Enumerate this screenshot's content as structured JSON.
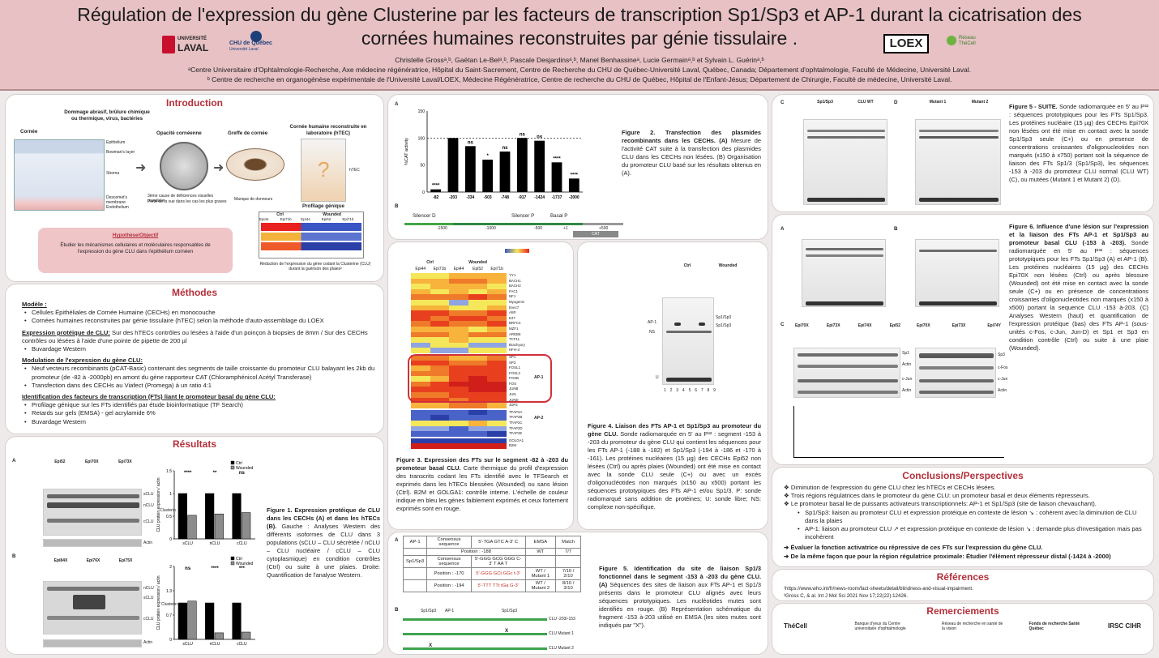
{
  "header": {
    "title_line1": "Régulation de l'expression du gène Clusterine par les facteurs de transcription Sp1/Sp3 et AP-1 durant la cicatrisation des",
    "title_line2": "cornées humaines reconstruites par génie tissulaire",
    "authors": "Christelle Grossᵃ,ᵇ, Gaëtan Le-Belᵃ,ᵇ, Pascale Desjardinsᵃ,ᵇ, Manel Benhassineᵃ, Lucie Germainᵃ,ᵇ et Sylvain L. Guérinᵃ,ᵇ",
    "affil_a": "ᵃCentre Universitaire d'Ophtalmologie-Recherche, Axe médecine régénératrice, Hôpital du Saint-Sacrement, Centre de Recherche du CHU de Québec-Université Laval, Québec, Canada; Département d'ophtalmologie, Faculté de Médecine, Université Laval.",
    "affil_b": "ᵇ Centre de recherche en organogénèse expérimentale de l'Université Laval/LOEX, Médecine Régénératrice, Centre de recherche du CHU de Québec, Hôpital de l'Enfant-Jésus; Département de Chirurgie, Faculté de médecine, Université Laval.",
    "logo_ul_1": "UNIVERSITÉ",
    "logo_ul_2": "LAVAL",
    "logo_chu": "CHU de Québec",
    "logo_chu_sub": "Université Laval",
    "logo_loex": "LOEX",
    "logo_reseau": "Réseau ThéCell"
  },
  "intro": {
    "title": "Introduction",
    "damage": "Dommage abrasif, brûlure chimique ou thermique, virus, bactéries",
    "cornee": "Cornée",
    "opacite": "Opacité cornéenne",
    "greffe": "Greffe de cornée",
    "hce": "Cornée humaine reconstruite en laboratoire (hTEC)",
    "htec": "hTEC",
    "layers": [
      "Epithelium",
      "Bowman's layer",
      "Stroma",
      "Descemet's membrane",
      "Endothelium"
    ],
    "cause": "3ème cause de déficiences visuelles mondiale¹",
    "cause2": "Perte de la vue dans les cas les plus graves",
    "manque": "Manque de donneurs",
    "profil": "Profilage génique",
    "profil_cols": [
      "Ctrl",
      "Wounded"
    ],
    "profil_sub": [
      "Epi44",
      "Epi71b",
      "Epi44",
      "Epi52",
      "Epi71b"
    ],
    "reduction": "Réduction de l'expression du gène codant la Clusterine (CLU) durant la guérison des plaies²",
    "hyp_title": "Hypothèse/Objectif",
    "hyp_text": "Étudier les mécanismes cellulaires et moléculaires responsables de l'expression du gène CLU dans l'épithélium cornéen"
  },
  "methods": {
    "title": "Méthodes",
    "modele": "Modèle :",
    "modele_items": [
      "Cellules Épithéliales de Cornée Humaine (CECHs) en monocouche",
      "Cornées humaines reconstruites par génie tissulaire (hTEC) selon la méthode d'auto-assemblage du LOEX"
    ],
    "prot_title": "Expression protéique de CLU:",
    "prot_text": "Sur des hTECs contrôles ou lésées à l'aide d'un poinçon à biopsies de 8mm / Sur des CECHs contrôles ou lésées à l'aide d'une pointe de pipette de 200 µl",
    "prot_items": [
      "Buvardage Western"
    ],
    "mod_title": "Modulation de l'expression du gène CLU:",
    "mod_items": [
      "Neuf vecteurs recombinants (pCAT-Basic) contenant des segments de taille croissante du promoteur CLU balayant les 2kb du promoteur (de -82 à -2000pb) en amont du gène rapporteur CAT (Chloramphénicol Acétyl Transferase)",
      "Transfection dans des CECHs au Viafect (Promega) à un ratio 4:1"
    ],
    "ft_title": "Identification des facteurs de transcription (FTs) liant le promoteur basal du gène CLU:",
    "ft_items": [
      "Profilage génique sur les FTs identifiés par étude bioinformatique   (TF Search)",
      "Retards sur gels (EMSA) - gel acrylamide 6%",
      "Buvardage Western"
    ]
  },
  "results": {
    "title": "Résultats",
    "fig1_caption_bold": "Figure 1. Expression protéique de CLU dans les CECHs (A) et dans les hTECs (B).",
    "fig1_caption": "Gauche : Analyses Western des différents isoformes de CLU dans 3 populations (sCLU – CLU sécrétée / nCLU – CLU nucléaire / cCLU – CLU cytoplasmique) en condition contrôles (Ctrl) ou suite à une plaies. Droite: Quantification de l'analyse Western.",
    "fig1_A_pops": [
      "Epi52",
      "Epi70X",
      "Epi73X"
    ],
    "fig1_B_pops": [
      "Epi84X",
      "Epi76X",
      "Epi75X"
    ],
    "lanes": [
      "Ctrl",
      "Wounded"
    ],
    "bands": [
      "sCLU",
      "nCLU",
      "cCLU"
    ],
    "clusterin": "Clusterin",
    "actin": "Actin",
    "kda_A": [
      "80",
      "60",
      "50",
      "40"
    ],
    "legend": [
      "Ctrl",
      "Wounded"
    ],
    "ylabel": "CLU protein expression / actin",
    "sig_A": [
      "****",
      "**",
      "ns"
    ],
    "sig_B": [
      "ns",
      "****",
      "***"
    ],
    "panel_A": "A",
    "panel_B": "B"
  },
  "fig2": {
    "caption_bold": "Figure 2. Transfection des plasmides recombinants dans les CECHs. (A)",
    "caption": "Mesure de l'activité CAT suite à la transfection des plasmides CLU dans les CECHs non lésées. (B) Organisation du promoteur CLU basé sur les résultats obtenus en (A).",
    "ylabel": "%CAT activity",
    "sig": [
      "****",
      "",
      "ns",
      "*",
      "ns",
      "ns",
      "ns",
      "****",
      "****"
    ],
    "regions": [
      "Silencer D",
      "Silencer P",
      "Basal P"
    ],
    "positions": [
      "-1500",
      "-1000",
      "-500",
      "+1",
      "+500"
    ],
    "cat": "CAT"
  },
  "fig3": {
    "caption_bold": "Figure 3. Expression des FTs sur le segment -82 à -203 du promoteur basal CLU.",
    "caption": "Carte thermique du profil d'expression des transcrits codant les FTs identifié avec le TFSearch et exprimés dans les hTECs blessées (Wounded) ou sans lésion (Ctrl). B2M et GOLGA1: contrôle interne. L'échelle de couleur indique en bleu les gènes faiblement exprimés et ceux fortement exprimés sont en rouge.",
    "groups": [
      "Ctrl",
      "Wounded"
    ],
    "cols": [
      "Epi44",
      "Epi71b",
      "Epi44",
      "Epi52",
      "Epi71b"
    ],
    "genes": [
      "YY1",
      "BACH1",
      "BACH2",
      "FAC1",
      "NF1",
      "Myogenin",
      "Evec7",
      "AhR",
      "E47",
      "BRFC4",
      "MZF1",
      "AREB6",
      "TCF11",
      "Brachyury",
      "HFH-3",
      "SP1",
      "SP3",
      "FOSL1",
      "FOSL2",
      "FOSB",
      "FOS",
      "JUNB",
      "JUN",
      "JUND",
      "JDP2",
      "TFAP2A",
      "TFAP2B",
      "TFAP2C",
      "TFAP2D",
      "TFAP2E",
      "GOLGA1",
      "B2M"
    ],
    "ap1": "AP-1",
    "ap2": "AP-2"
  },
  "fig4": {
    "caption_bold": "Figure 4. Liaison des FTs AP-1 et Sp1/Sp3 au promoteur du gène CLU.",
    "caption": "Sonde radiomarquée en 5' au P³² : segment -153 à -203 du promoteur du gène CLU qui contient les séquences pour les FTs AP-1 (-188 à -182) et Sp1/Sp3 (-194 à -186 et -170 à -161). Les protéines nucléaires (15 µg) des CECHs Epi52 non lésées (Ctrl) ou après plaies (Wounded) ont été mise en contact avec la sonde CLU seule (C+) ou avec un excès d'oligonucléotides non marqués (x150 au x500) portant les séquences prototypiques des FTs AP-1 et/ou Sp1/3. P: sonde radiomarqué sans addition de protéines; U: sonde libre; NS: complexe non-spécifique.",
    "labels": [
      "AP-1",
      "NS",
      "Sp1/Sp3",
      "Sp1/Sp3",
      "U"
    ],
    "groups": [
      "Ctrl",
      "Wounded"
    ],
    "lanes": [
      "1",
      "2",
      "3",
      "4",
      "5",
      "6",
      "7",
      "8",
      "9"
    ]
  },
  "fig5": {
    "caption_bold": "Figure 5. Identification du site de liaison Sp1/3 fonctionnel dans le segment -153 à -203 du gène CLU. (A)",
    "caption": "Séquences des sites de liaison aux FTs AP-1 et Sp1/3 présents dans le promoteur CLU alignés avec leurs séquences prototypiques. Les nucléotides mutes sont identifiés en rouge. (B) Représentation schématique du fragment -153 à-203 utilisé en EMSA (les sites mutes sont indiqués par \"X\").",
    "table_head": [
      "Consensus sequence",
      "EMSA",
      "Match"
    ],
    "rows": [
      {
        "tf": "AP-1",
        "seq": "5'-TGA GTC A-3'  C",
        "emsa": "",
        "match": ""
      },
      {
        "tf": "",
        "seq": "Position : -188",
        "emsa": "WT",
        "match": "7/7"
      },
      {
        "tf": "Sp1/Sp3",
        "seq": "5'-GGG GCG GGG C-3'  T    AA T",
        "emsa": "",
        "match": ""
      },
      {
        "tf": "",
        "seq": "Position : -170",
        "emsa": "WT / Mutant 1",
        "match": "7/10 / 2/10"
      },
      {
        "tf": "",
        "seq": "Position : -194",
        "emsa": "WT / Mutant 2",
        "match": "8/10 / 3/10"
      }
    ],
    "construct_labels": [
      "CLU -203/-153",
      "CLU Mutant 1",
      "CLU Mutant 2"
    ],
    "sites": [
      "Sp1/Sp3",
      "AP-1",
      "Sp1/Sp3"
    ]
  },
  "fig5b": {
    "caption_bold": "Figure 5 - SUITE.",
    "caption": "Sonde radiomarquée en 5' au P³² : séquences prototypiques pour les FTs Sp1/Sp3. Les protéines nucléaire (15 µg) des CECHs Epi70X non lésées ont été mise en contact avec la sonde Sp1/Sp3 seule (C+) ou en presence de concentrations croissantes d'oligonucleotides non marqués (x150 à x750) portant soit la séquence de liaison des FTs Sp1/3 (Sp1/Sp3), les séquences -153 à -203 du promoteur CLU normal (CLU WT) (C), ou mutées (Mutant 1 et Mutant 2) (D).",
    "gel_C_groups": [
      "Sp1/Sp3",
      "CLU WT"
    ],
    "gel_D_groups": [
      "Mutant 1",
      "Mutant 2"
    ]
  },
  "fig6": {
    "caption_bold": "Figure 6. Influence d'une lésion sur l'expression et la liaison des FTs AP-1 et Sp1/Sp3 au promoteur basal CLU (-153 à -203).",
    "caption": "Sonde radiomarquée en 5' au P³² : séquences prototypiques pour les FTs Sp1/Sp3 (A) et AP-1 (B). Les protéines nucléaires (15 µg) des CECHs Epi70X non lésées (Ctrl) ou après blessure (Wounded) ont été mise en contact avec la sonde seule (C+) ou en présence de concentrations croissantes d'oligonucleotides non marqués (x150 à x500) portant la sequence CLU -153 à-203. (C) Analyses Western (haut) et quantification de l'expression protéique (bas) des FTs AP-1 (sous-unités c-Fos, c-Jun, Jun-D) et Sp1 et Sp3 en condition contrôle (Ctrl) ou suite à une plaie (Wounded).",
    "western_pops_left": [
      "Epi70X",
      "Epi73X",
      "Epi74X",
      "Epi52"
    ],
    "western_pops_right": [
      "Epi70X",
      "Epi73X",
      "Epi74Y"
    ],
    "blots_left": [
      "Sp1",
      "Actin",
      "c-Jun",
      "Actin"
    ],
    "blots_right": [
      "Sp3",
      "c-Fos",
      "c-Jun",
      "Actin"
    ]
  },
  "conclusions": {
    "title": "Conclusions/Perspectives",
    "items": [
      "Diminution de l'expression du gène CLU chez les hTECs et CECHs lésées.",
      "Trois régions régulatrices dans le promoteur du gène CLU: un promoteur basal et deux éléments répresseurs.",
      "Le promoteur basal lie de puissants activateurs transcriptionnels: AP-1 et Sp1/Sp3 (site de liaison chevauchant)."
    ],
    "sub1": "Sp1/Sp3:  liaison au promoteur CLU et expression protéique en contexte de lésion  ↘ : cohérent avec la diminution de CLU dans la plaies",
    "sub2": "AP-1: liaison au promoteur CLU ↗ et expression protéique en contexte de lésion ↘ : demande plus d'investigation mais pas incohérent",
    "arrow1": "Évaluer la fonction activatrice ou répressive de ces FTs sur l'expression du gène CLU.",
    "arrow2": "De la même façon que pour la région régulatrice proximale: Étudier l'élément répresseur distal (-1424 à -2000)"
  },
  "references": {
    "title": "Références",
    "ref1": "¹https://www.who.int/fr/news-room/fact-sheets/detail/blindness-and-visual-impairment.",
    "ref2": "²Gross C, & al. Int J Mol Sci 2021 Nov 17;22(22):12426."
  },
  "thanks": {
    "title": "Remerciements",
    "logos": [
      "ThéCell",
      "Banque d'yeux du Centre universitaire d'ophtalmologie",
      "Réseau de recherche en santé de la vision",
      "Fonds de recherche Santé Québec",
      "IRSC CIHR"
    ]
  },
  "chart_data": [
    {
      "type": "bar",
      "title": "",
      "categories": [
        "sCLU",
        "nCLU",
        "cCLU"
      ],
      "series": [
        {
          "name": "Ctrl",
          "values": [
            1.0,
            1.0,
            1.0
          ]
        },
        {
          "name": "Wounded",
          "values": [
            0.52,
            0.55,
            0.58
          ]
        }
      ],
      "ylabel": "CLU protein expression / actin",
      "ylim": [
        0,
        1.5
      ]
    },
    {
      "type": "bar",
      "title": "",
      "categories": [
        "sCLU",
        "nCLU",
        "cCLU"
      ],
      "series": [
        {
          "name": "Ctrl",
          "values": [
            1.0,
            1.0,
            1.0
          ]
        },
        {
          "name": "Wounded",
          "values": [
            1.05,
            0.18,
            0.2
          ]
        }
      ],
      "ylabel": "CLU protein expression / actin",
      "ylim": [
        0,
        2.0
      ]
    },
    {
      "type": "bar",
      "title": "",
      "categories": [
        "-82",
        "-203",
        "-334",
        "-503",
        "-748",
        "-917",
        "-1424",
        "-1737",
        "-2000"
      ],
      "values": [
        5,
        100,
        85,
        60,
        75,
        100,
        95,
        55,
        25
      ],
      "ylabel": "%CAT activity",
      "ylim": [
        0,
        150
      ]
    }
  ]
}
